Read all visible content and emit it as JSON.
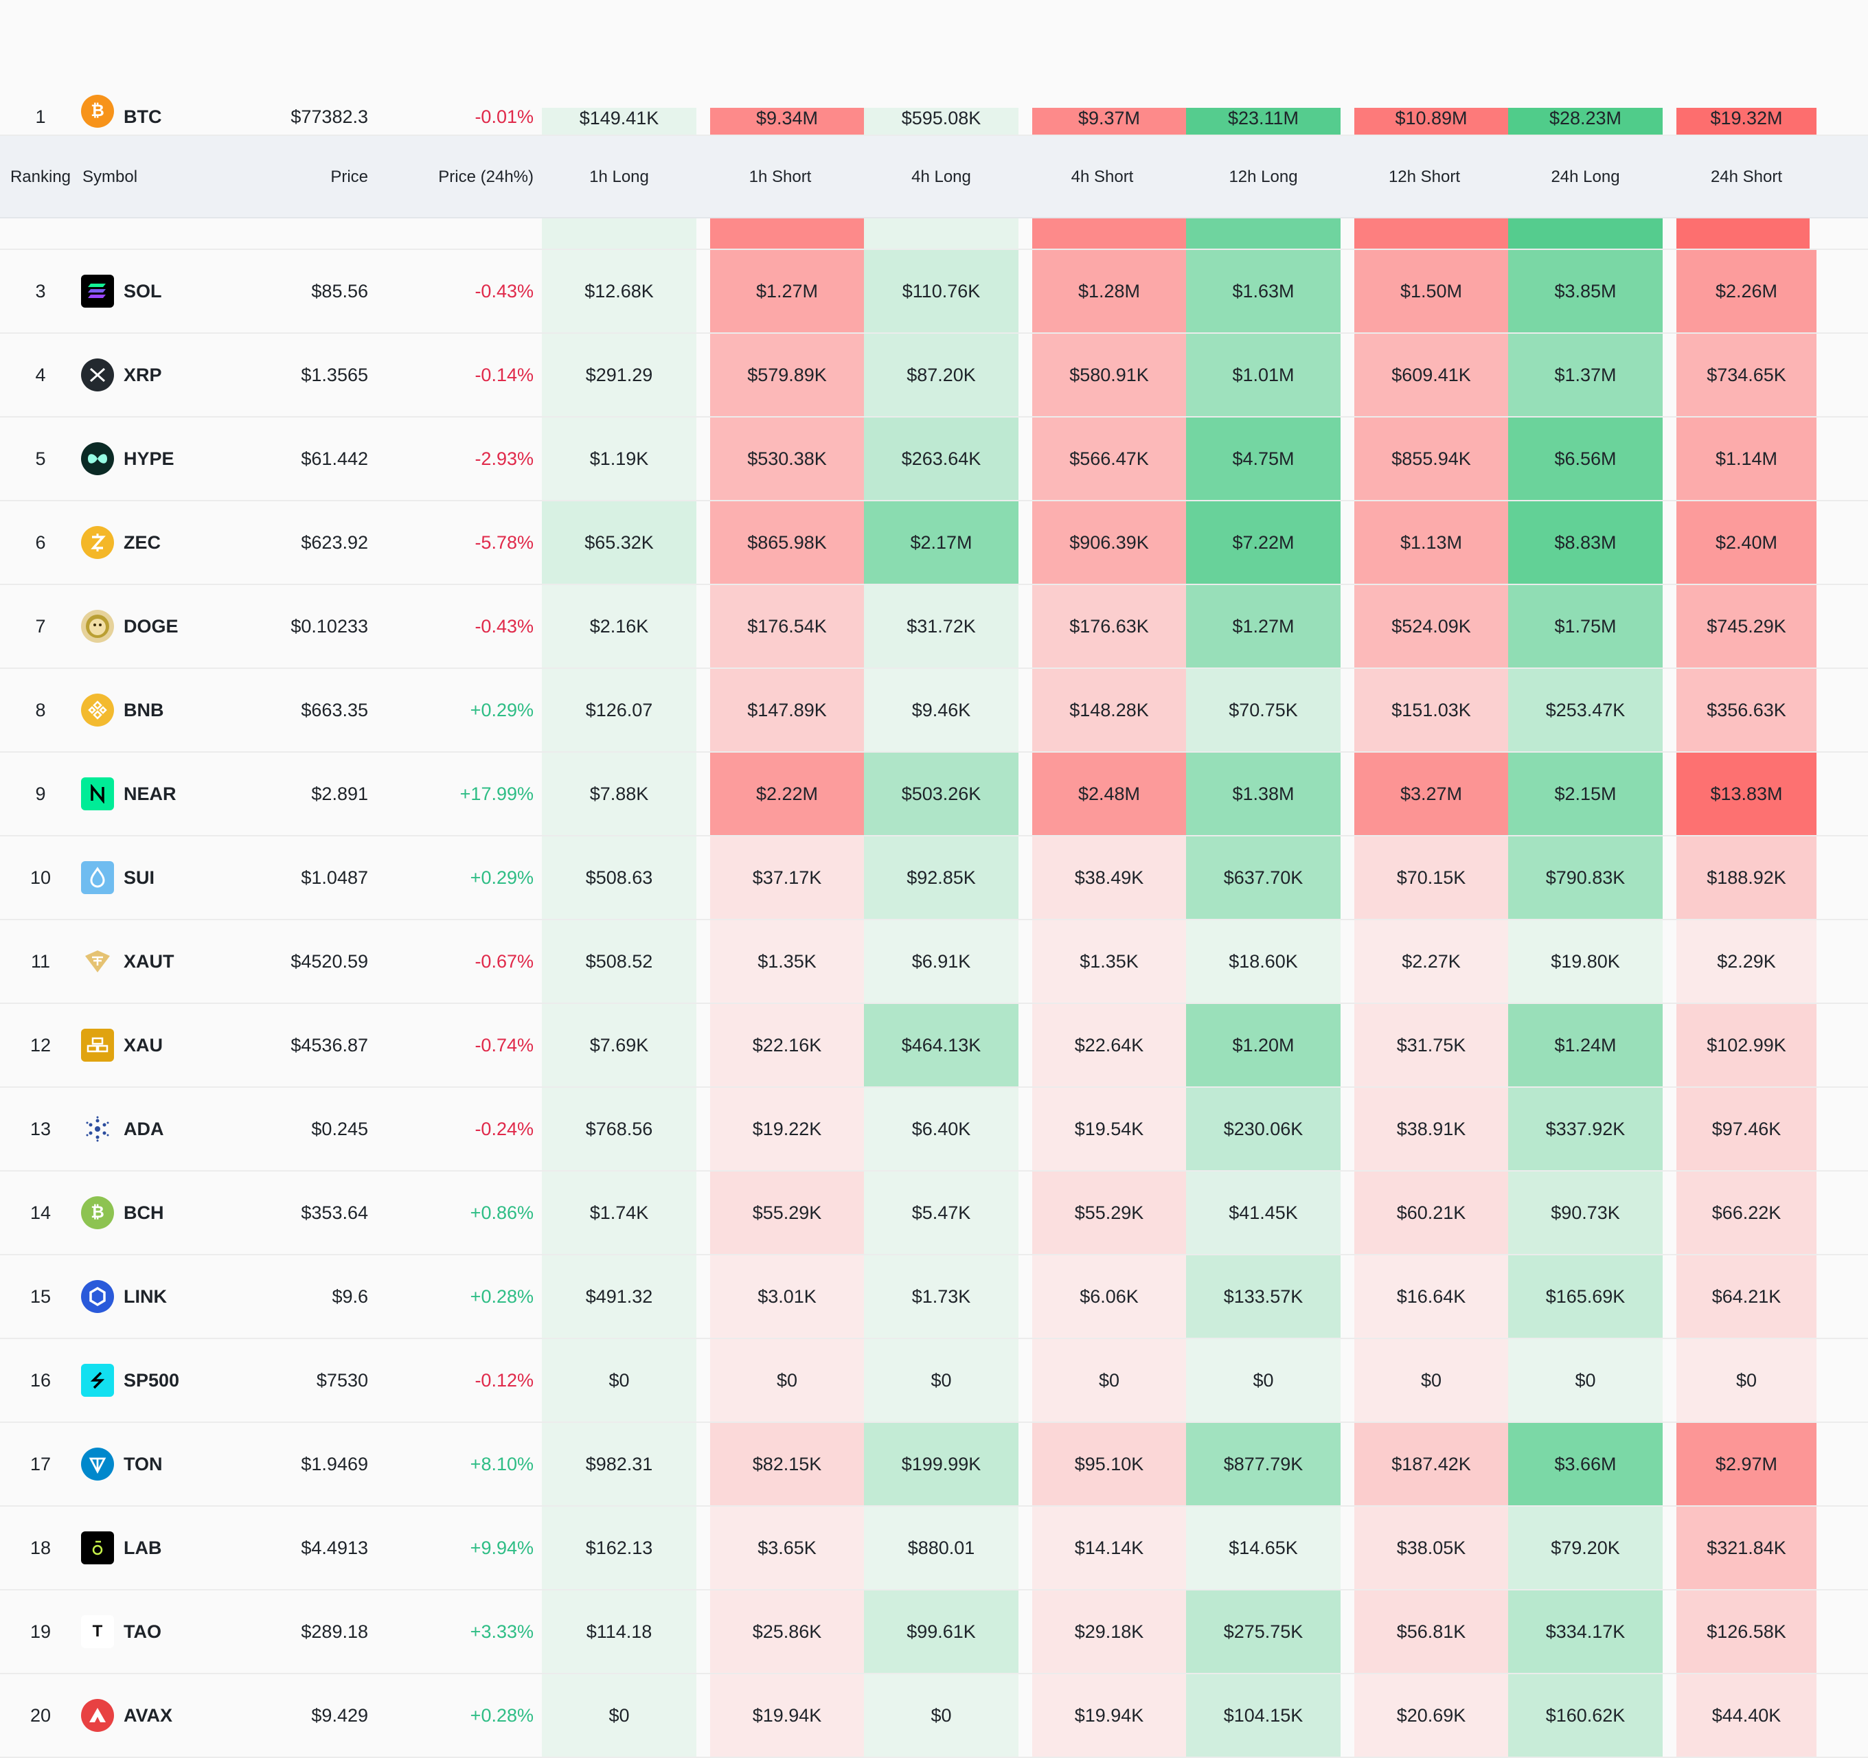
{
  "colors": {
    "positive_text": "#2ebd85",
    "negative_text": "#e0294a",
    "header_bg": "#eef1f5"
  },
  "header": {
    "ranking": "Ranking",
    "symbol": "Symbol",
    "price": "Price",
    "price_change": "Price (24h%)",
    "h1_long": "1h Long",
    "h1_short": "1h Short",
    "h4_long": "4h Long",
    "h4_short": "4h Short",
    "h12_long": "12h Long",
    "h12_short": "12h Short",
    "h24_long": "24h Long",
    "h24_short": "24h Short"
  },
  "top_partial_row": {
    "rank": "1",
    "symbol": "BTC",
    "icon": "btc-icon",
    "price": "$77382.3",
    "change": "-0.01%",
    "values": [
      "$149.41K",
      "$9.34M",
      "$595.08K",
      "$9.37M",
      "$23.11M",
      "$10.89M",
      "$28.23M",
      "$19.32M"
    ]
  },
  "rows": [
    {
      "rank": "3",
      "symbol": "SOL",
      "icon": "sol-icon",
      "price": "$85.56",
      "change": "-0.43%",
      "values": [
        "$12.68K",
        "$1.27M",
        "$110.76K",
        "$1.28M",
        "$1.63M",
        "$1.50M",
        "$3.85M",
        "$2.26M"
      ]
    },
    {
      "rank": "4",
      "symbol": "XRP",
      "icon": "xrp-icon",
      "price": "$1.3565",
      "change": "-0.14%",
      "values": [
        "$291.29",
        "$579.89K",
        "$87.20K",
        "$580.91K",
        "$1.01M",
        "$609.41K",
        "$1.37M",
        "$734.65K"
      ]
    },
    {
      "rank": "5",
      "symbol": "HYPE",
      "icon": "hype-icon",
      "price": "$61.442",
      "change": "-2.93%",
      "values": [
        "$1.19K",
        "$530.38K",
        "$263.64K",
        "$566.47K",
        "$4.75M",
        "$855.94K",
        "$6.56M",
        "$1.14M"
      ]
    },
    {
      "rank": "6",
      "symbol": "ZEC",
      "icon": "zec-icon",
      "price": "$623.92",
      "change": "-5.78%",
      "values": [
        "$65.32K",
        "$865.98K",
        "$2.17M",
        "$906.39K",
        "$7.22M",
        "$1.13M",
        "$8.83M",
        "$2.40M"
      ]
    },
    {
      "rank": "7",
      "symbol": "DOGE",
      "icon": "doge-icon",
      "price": "$0.10233",
      "change": "-0.43%",
      "values": [
        "$2.16K",
        "$176.54K",
        "$31.72K",
        "$176.63K",
        "$1.27M",
        "$524.09K",
        "$1.75M",
        "$745.29K"
      ]
    },
    {
      "rank": "8",
      "symbol": "BNB",
      "icon": "bnb-icon",
      "price": "$663.35",
      "change": "+0.29%",
      "values": [
        "$126.07",
        "$147.89K",
        "$9.46K",
        "$148.28K",
        "$70.75K",
        "$151.03K",
        "$253.47K",
        "$356.63K"
      ]
    },
    {
      "rank": "9",
      "symbol": "NEAR",
      "icon": "near-icon",
      "price": "$2.891",
      "change": "+17.99%",
      "values": [
        "$7.88K",
        "$2.22M",
        "$503.26K",
        "$2.48M",
        "$1.38M",
        "$3.27M",
        "$2.15M",
        "$13.83M"
      ]
    },
    {
      "rank": "10",
      "symbol": "SUI",
      "icon": "sui-icon",
      "price": "$1.0487",
      "change": "+0.29%",
      "values": [
        "$508.63",
        "$37.17K",
        "$92.85K",
        "$38.49K",
        "$637.70K",
        "$70.15K",
        "$790.83K",
        "$188.92K"
      ]
    },
    {
      "rank": "11",
      "symbol": "XAUT",
      "icon": "xaut-icon",
      "price": "$4520.59",
      "change": "-0.67%",
      "values": [
        "$508.52",
        "$1.35K",
        "$6.91K",
        "$1.35K",
        "$18.60K",
        "$2.27K",
        "$19.80K",
        "$2.29K"
      ]
    },
    {
      "rank": "12",
      "symbol": "XAU",
      "icon": "xau-icon",
      "price": "$4536.87",
      "change": "-0.74%",
      "values": [
        "$7.69K",
        "$22.16K",
        "$464.13K",
        "$22.64K",
        "$1.20M",
        "$31.75K",
        "$1.24M",
        "$102.99K"
      ]
    },
    {
      "rank": "13",
      "symbol": "ADA",
      "icon": "ada-icon",
      "price": "$0.245",
      "change": "-0.24%",
      "values": [
        "$768.56",
        "$19.22K",
        "$6.40K",
        "$19.54K",
        "$230.06K",
        "$38.91K",
        "$337.92K",
        "$97.46K"
      ]
    },
    {
      "rank": "14",
      "symbol": "BCH",
      "icon": "bch-icon",
      "price": "$353.64",
      "change": "+0.86%",
      "values": [
        "$1.74K",
        "$55.29K",
        "$5.47K",
        "$55.29K",
        "$41.45K",
        "$60.21K",
        "$90.73K",
        "$66.22K"
      ]
    },
    {
      "rank": "15",
      "symbol": "LINK",
      "icon": "link-icon",
      "price": "$9.6",
      "change": "+0.28%",
      "values": [
        "$491.32",
        "$3.01K",
        "$1.73K",
        "$6.06K",
        "$133.57K",
        "$16.64K",
        "$165.69K",
        "$64.21K"
      ]
    },
    {
      "rank": "16",
      "symbol": "SP500",
      "icon": "sp500-icon",
      "price": "$7530",
      "change": "-0.12%",
      "values": [
        "$0",
        "$0",
        "$0",
        "$0",
        "$0",
        "$0",
        "$0",
        "$0"
      ]
    },
    {
      "rank": "17",
      "symbol": "TON",
      "icon": "ton-icon",
      "price": "$1.9469",
      "change": "+8.10%",
      "values": [
        "$982.31",
        "$82.15K",
        "$199.99K",
        "$95.10K",
        "$877.79K",
        "$187.42K",
        "$3.66M",
        "$2.97M"
      ]
    },
    {
      "rank": "18",
      "symbol": "LAB",
      "icon": "lab-icon",
      "price": "$4.4913",
      "change": "+9.94%",
      "values": [
        "$162.13",
        "$3.65K",
        "$880.01",
        "$14.14K",
        "$14.65K",
        "$38.05K",
        "$79.20K",
        "$321.84K"
      ]
    },
    {
      "rank": "19",
      "symbol": "TAO",
      "icon": "tao-icon",
      "price": "$289.18",
      "change": "+3.33%",
      "values": [
        "$114.18",
        "$25.86K",
        "$99.61K",
        "$29.18K",
        "$275.75K",
        "$56.81K",
        "$334.17K",
        "$126.58K"
      ]
    },
    {
      "rank": "20",
      "symbol": "AVAX",
      "icon": "avax-icon",
      "price": "$9.429",
      "change": "+0.28%",
      "values": [
        "$0",
        "$19.94K",
        "$0",
        "$19.94K",
        "$104.15K",
        "$20.69K",
        "$160.62K",
        "$44.40K"
      ]
    }
  ]
}
